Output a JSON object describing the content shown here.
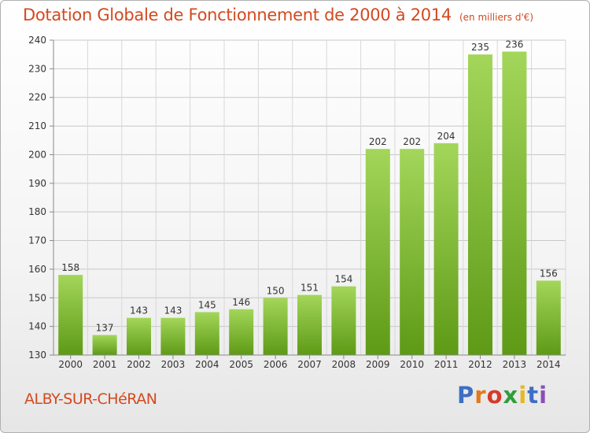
{
  "title": "Dotation Globale de Fonctionnement de 2000 à 2014",
  "subtitle": "(en milliers d'€)",
  "location": "ALBY-SUR-CHéRAN",
  "logo": {
    "letters": [
      "P",
      "r",
      "o",
      "x",
      "i",
      "t",
      "i"
    ],
    "colors": [
      "#3d6fc2",
      "#e07a1a",
      "#d63a2a",
      "#2f9e3a",
      "#e6b81c",
      "#3d6fc2",
      "#8a4fb8"
    ]
  },
  "colors": {
    "accent": "#d4491f",
    "bar_top": "#a3d65a",
    "bar_bottom": "#5e9a16"
  },
  "chart_data": {
    "type": "bar",
    "title": "Dotation Globale de Fonctionnement de 2000 à 2014",
    "subtitle": "(en milliers d'€)",
    "categories": [
      "2000",
      "2001",
      "2002",
      "2003",
      "2004",
      "2005",
      "2006",
      "2007",
      "2008",
      "2009",
      "2010",
      "2011",
      "2012",
      "2013",
      "2014"
    ],
    "values": [
      158,
      137,
      143,
      143,
      145,
      146,
      150,
      151,
      154,
      202,
      202,
      204,
      235,
      236,
      156
    ],
    "ylim": [
      130,
      240
    ],
    "yticks": [
      130,
      140,
      150,
      160,
      170,
      180,
      190,
      200,
      210,
      220,
      230,
      240
    ],
    "grid": true
  }
}
